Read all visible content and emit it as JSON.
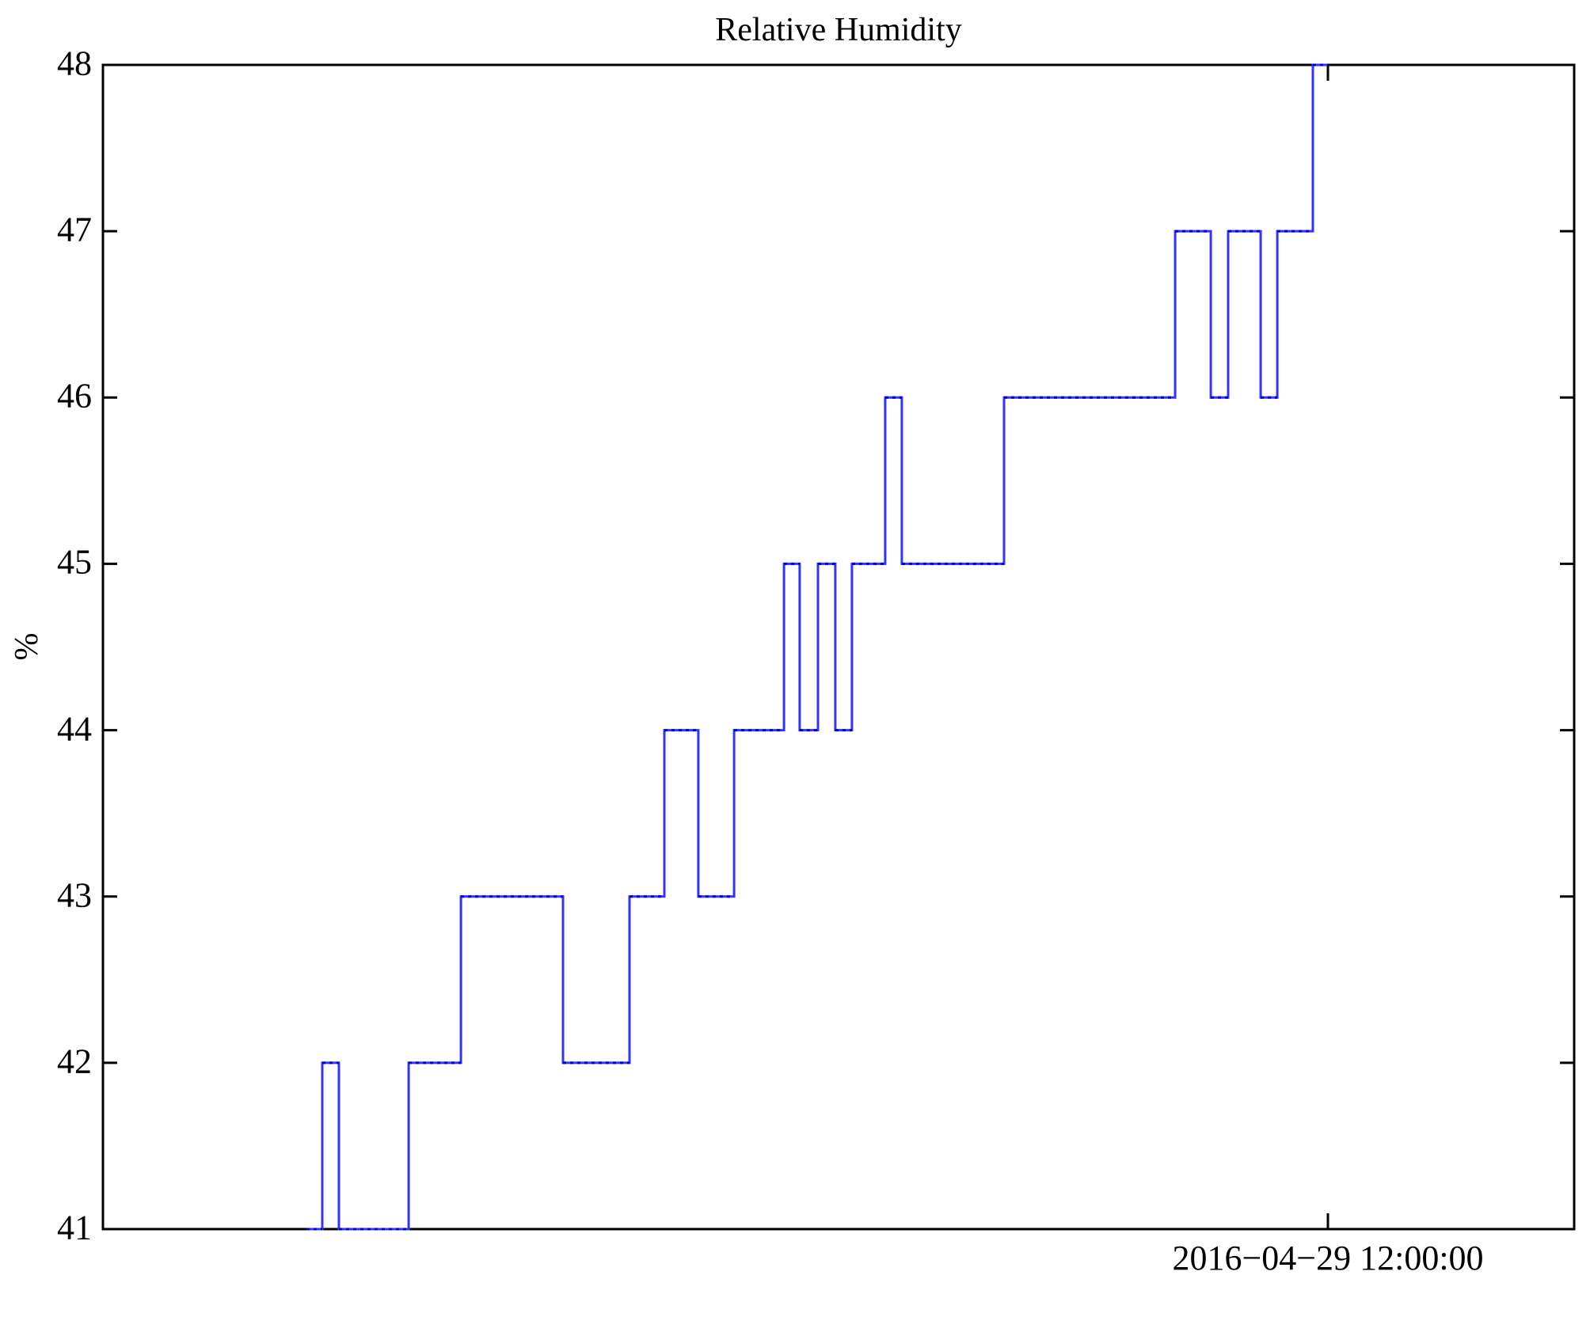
{
  "chart_data": {
    "type": "line",
    "step_mode": "post",
    "title": "Relative Humidity",
    "ylabel": "%",
    "xlabel": "",
    "ylim": [
      41,
      48
    ],
    "y_ticks": [
      41,
      42,
      43,
      44,
      45,
      46,
      47,
      48
    ],
    "grid": false,
    "legend": null,
    "background": "#ffffff",
    "axis_color": "#000000",
    "x_axis": {
      "tick_label": "2016−04−29 12:00:00",
      "tick_fraction": 0.8326,
      "x_unit": "fraction of plot width (only one labeled time tick)"
    },
    "series": [
      {
        "name": "relative-humidity",
        "color": "#3333ff",
        "marker_color": "#0000cc",
        "points_note": "step changes as [x_fraction, new_value]; value holds until next x",
        "points": [
          [
            0.1383,
            41
          ],
          [
            0.1491,
            42
          ],
          [
            0.1604,
            41
          ],
          [
            0.2078,
            42
          ],
          [
            0.2433,
            43
          ],
          [
            0.3127,
            42
          ],
          [
            0.3579,
            43
          ],
          [
            0.3816,
            44
          ],
          [
            0.4047,
            43
          ],
          [
            0.429,
            44
          ],
          [
            0.4629,
            45
          ],
          [
            0.4736,
            44
          ],
          [
            0.486,
            45
          ],
          [
            0.4978,
            44
          ],
          [
            0.5091,
            45
          ],
          [
            0.5317,
            46
          ],
          [
            0.543,
            45
          ],
          [
            0.6125,
            46
          ],
          [
            0.7288,
            47
          ],
          [
            0.753,
            46
          ],
          [
            0.7648,
            47
          ],
          [
            0.7869,
            46
          ],
          [
            0.7982,
            47
          ],
          [
            0.8224,
            48
          ]
        ],
        "x_end": 0.8326
      }
    ]
  }
}
